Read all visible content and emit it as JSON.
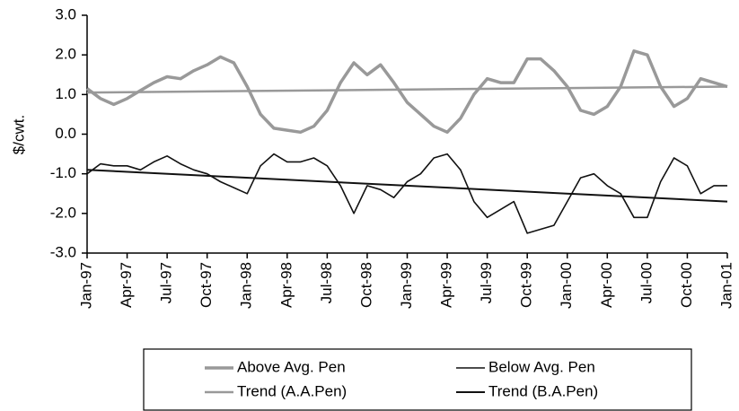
{
  "chart_data": {
    "type": "line",
    "y_label": "$/cwt.",
    "categories": [
      "Jan-97",
      null,
      null,
      "Apr-97",
      null,
      null,
      "Jul-97",
      null,
      null,
      "Oct-97",
      null,
      null,
      "Jan-98",
      null,
      null,
      "Apr-98",
      null,
      null,
      "Jul-98",
      null,
      null,
      "Oct-98",
      null,
      null,
      "Jan-99",
      null,
      null,
      "Apr-99",
      null,
      null,
      "Jul-99",
      null,
      null,
      "Oct-99",
      null,
      null,
      "Jan-00",
      null,
      null,
      "Apr-00",
      null,
      null,
      "Jul-00",
      null,
      null,
      "Oct-00",
      null,
      null,
      "Jan-01"
    ],
    "series": [
      {
        "name": "Above Avg. Pen",
        "color": "#999999",
        "width": 3.5,
        "values": [
          1.15,
          0.9,
          0.75,
          0.9,
          1.1,
          1.3,
          1.45,
          1.4,
          1.6,
          1.75,
          1.95,
          1.8,
          1.2,
          0.5,
          0.15,
          0.1,
          0.05,
          0.2,
          0.6,
          1.3,
          1.8,
          1.5,
          1.75,
          1.3,
          0.8,
          0.5,
          0.2,
          0.05,
          0.4,
          1.0,
          1.4,
          1.3,
          1.3,
          1.9,
          1.9,
          1.6,
          1.2,
          0.6,
          0.5,
          0.7,
          1.2,
          2.1,
          2.0,
          1.2,
          0.7,
          0.9,
          1.4,
          1.3,
          1.2
        ]
      },
      {
        "name": "Below Avg. Pen",
        "color": "#111111",
        "width": 1.6,
        "values": [
          -1.0,
          -0.75,
          -0.8,
          -0.8,
          -0.9,
          -0.7,
          -0.55,
          -0.75,
          -0.9,
          -1.0,
          -1.2,
          -1.35,
          -1.5,
          -0.8,
          -0.5,
          -0.7,
          -0.7,
          -0.6,
          -0.8,
          -1.3,
          -2.0,
          -1.3,
          -1.4,
          -1.6,
          -1.2,
          -1.0,
          -0.6,
          -0.5,
          -0.9,
          -1.7,
          -2.1,
          -1.9,
          -1.7,
          -2.5,
          -2.4,
          -2.3,
          -1.7,
          -1.1,
          -1.0,
          -1.3,
          -1.5,
          -2.1,
          -2.1,
          -1.2,
          -0.6,
          -0.8,
          -1.5,
          -1.3,
          -1.3
        ]
      }
    ],
    "trends": [
      {
        "name": "Trend (A.A.Pen)",
        "color": "#999999",
        "width": 2.5,
        "start": 1.05,
        "end": 1.2
      },
      {
        "name": "Trend (B.A.Pen)",
        "color": "#111111",
        "width": 2,
        "start": -0.9,
        "end": -1.7
      }
    ],
    "ylim": [
      -3,
      3
    ],
    "yticks": [
      {
        "value": -3,
        "label": "-3.0"
      },
      {
        "value": -2,
        "label": "-2.0"
      },
      {
        "value": -1,
        "label": "-1.0"
      },
      {
        "value": 0,
        "label": "0.0"
      },
      {
        "value": 1,
        "label": "1.0"
      },
      {
        "value": 2,
        "label": "2.0"
      },
      {
        "value": 3,
        "label": "3.0"
      }
    ],
    "grid": false
  }
}
